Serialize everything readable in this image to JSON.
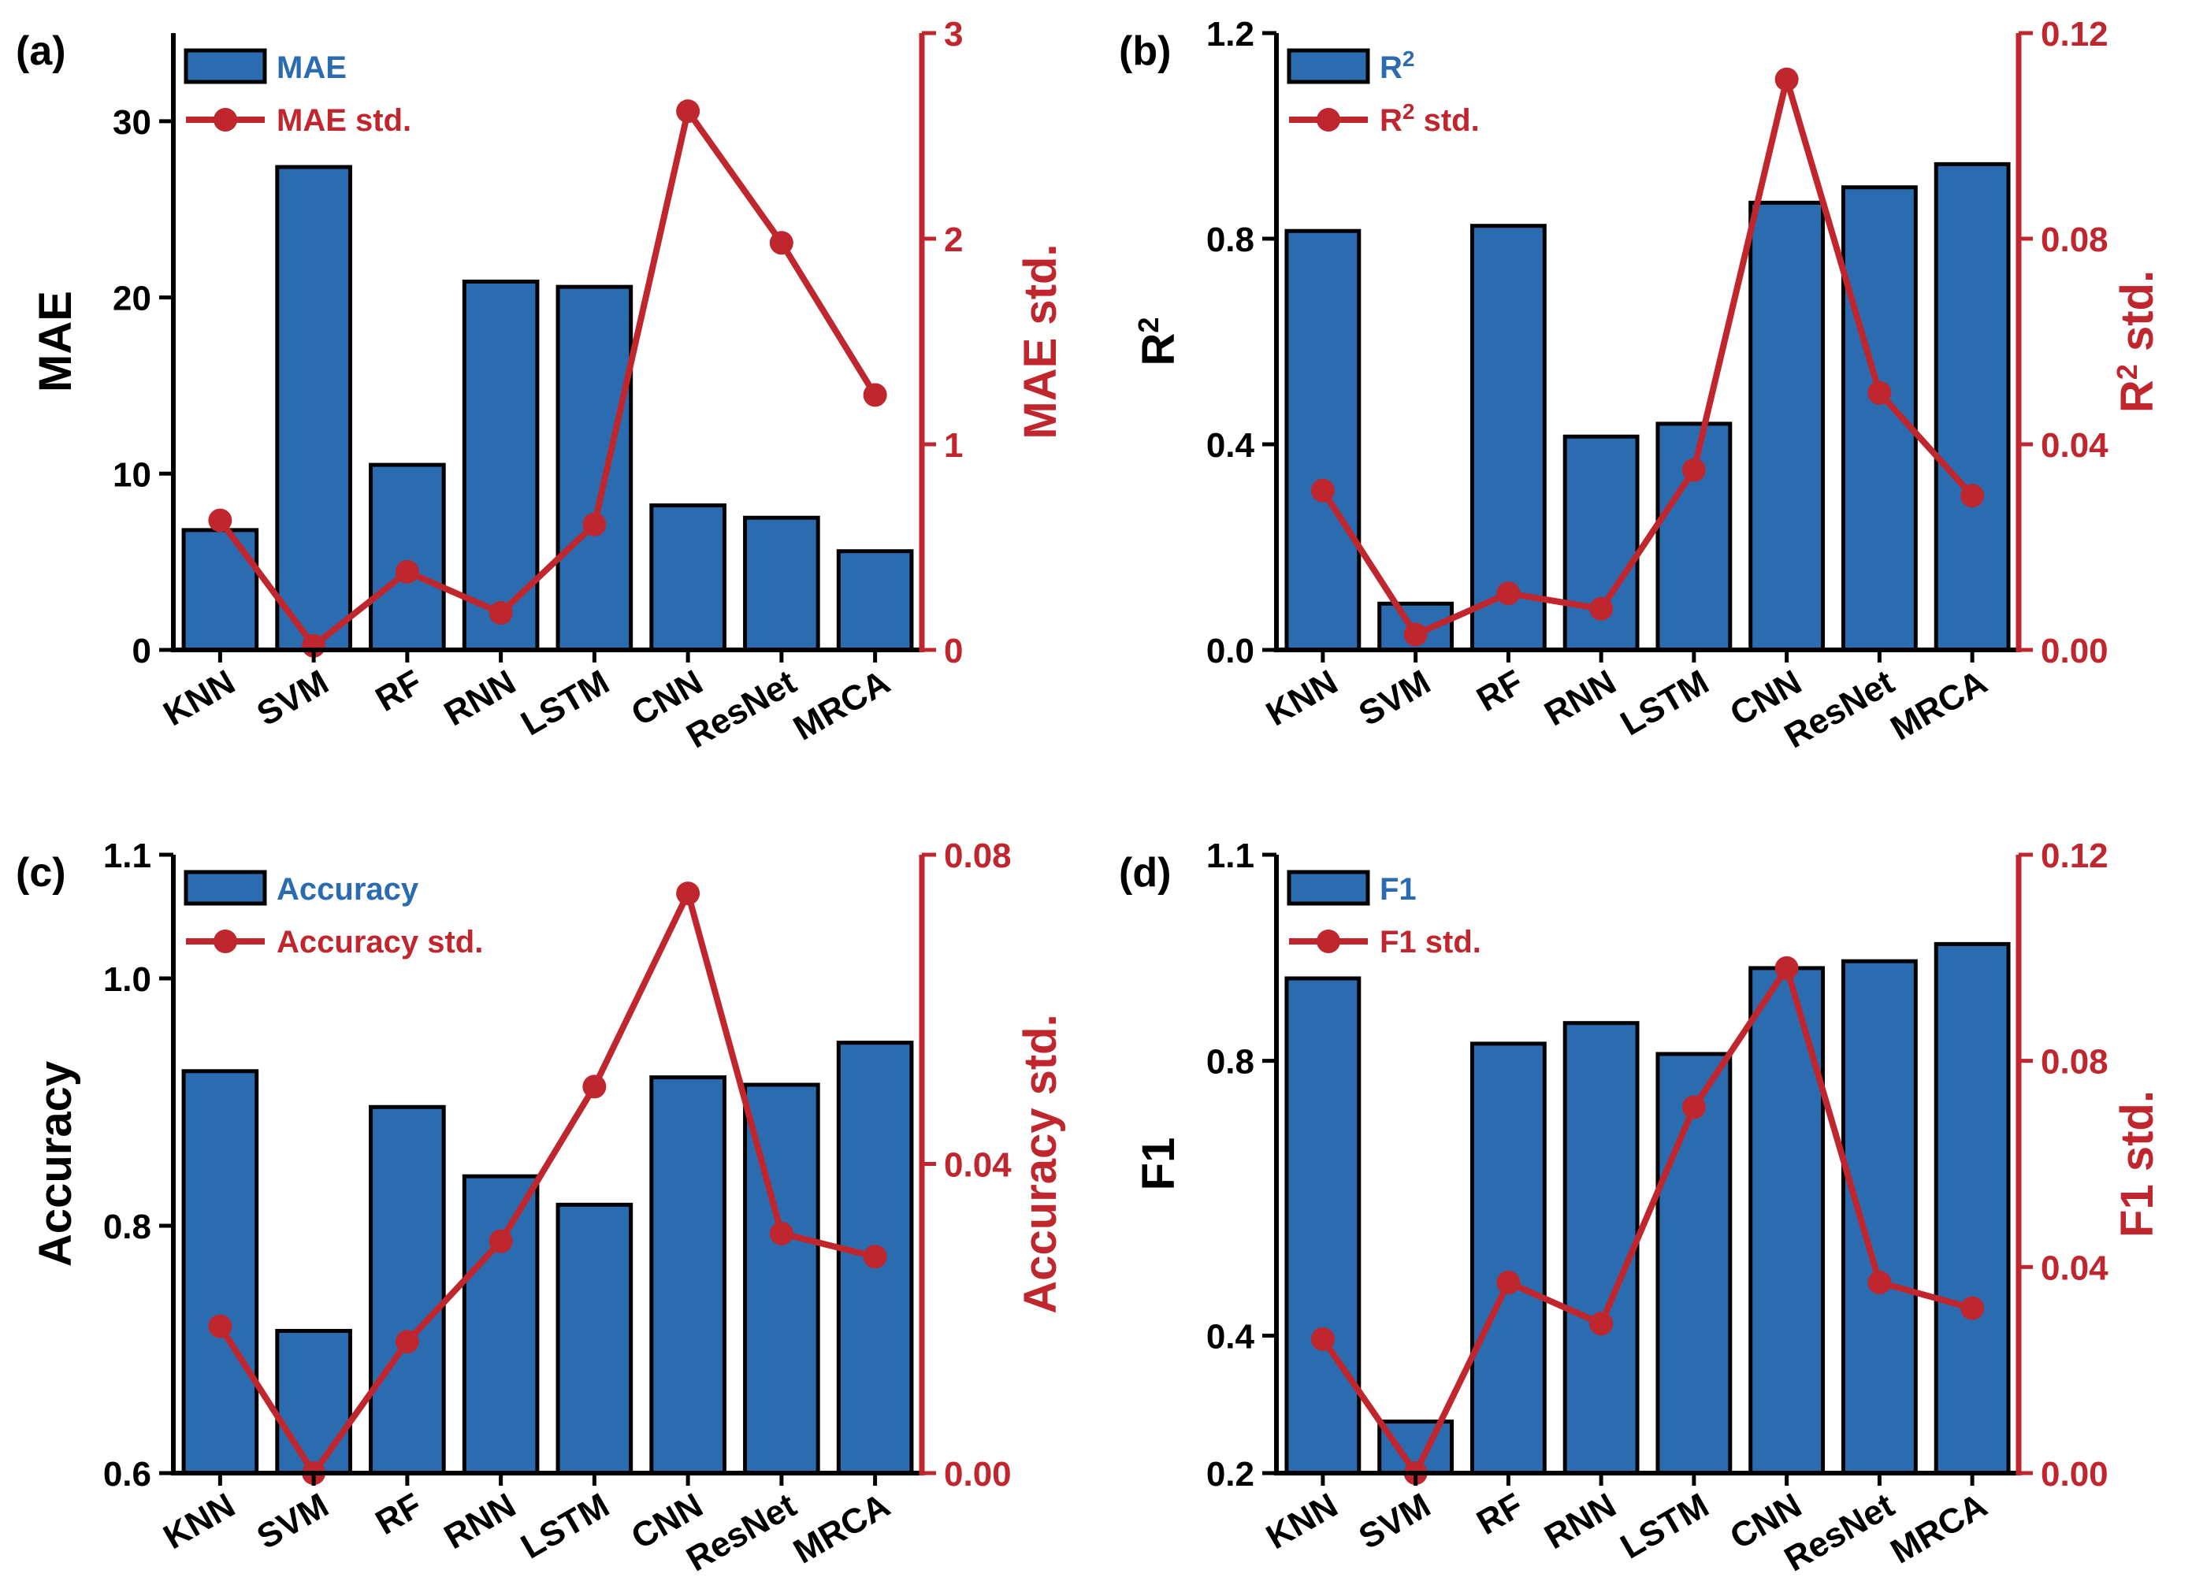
{
  "figure": {
    "bar_color": "#2b6cb0",
    "line_color": "#c0262d",
    "axis_color": "#000000"
  },
  "chart_data": [
    {
      "id": "a",
      "panel_label": "(a)",
      "type": "bar",
      "categories": [
        "KNN",
        "SVM",
        "RF",
        "RNN",
        "LSTM",
        "CNN",
        "ResNet",
        "MRCA"
      ],
      "ylabel": "MAE",
      "ylim": [
        0,
        35
      ],
      "yticks": [
        "0",
        "10",
        "20",
        "30"
      ],
      "ytick_values": [
        0,
        10,
        20,
        30
      ],
      "y2label": "MAE std.",
      "y2lim": [
        0,
        3
      ],
      "y2ticks": [
        "0",
        "1",
        "2",
        "3"
      ],
      "y2tick_values": [
        0,
        1,
        2,
        3
      ],
      "series": [
        {
          "name": "MAE",
          "kind": "bar",
          "axis": "left",
          "values": [
            6.8,
            27.4,
            10.5,
            20.9,
            20.6,
            8.2,
            7.5,
            5.6
          ]
        },
        {
          "name": "MAE std.",
          "kind": "line",
          "axis": "right",
          "values": [
            0.63,
            0.02,
            0.38,
            0.18,
            0.61,
            2.62,
            1.98,
            1.24
          ]
        }
      ]
    },
    {
      "id": "b",
      "panel_label": "(b)",
      "type": "bar",
      "categories": [
        "KNN",
        "SVM",
        "RF",
        "RNN",
        "LSTM",
        "CNN",
        "ResNet",
        "MRCA"
      ],
      "ylabel": "R",
      "ylabel_sup": "2",
      "ylim": [
        0,
        1.2
      ],
      "yticks": [
        "0.0",
        "0.4",
        "0.8",
        "1.2"
      ],
      "ytick_values": [
        0,
        0.4,
        0.8,
        1.2
      ],
      "y2label": "R",
      "y2label_sup": "2",
      "y2label_suffix": " std.",
      "y2lim": [
        0,
        0.12
      ],
      "y2ticks": [
        "0.00",
        "0.04",
        "0.08",
        "0.12"
      ],
      "y2tick_values": [
        0,
        0.04,
        0.08,
        0.12
      ],
      "series": [
        {
          "name": "R",
          "name_sup": "2",
          "name_suffix": "",
          "kind": "bar",
          "axis": "left",
          "values": [
            0.815,
            0.09,
            0.825,
            0.415,
            0.44,
            0.87,
            0.9,
            0.945
          ]
        },
        {
          "name": "R",
          "name_sup": "2",
          "name_suffix": " std.",
          "kind": "line",
          "axis": "right",
          "values": [
            0.031,
            0.003,
            0.011,
            0.008,
            0.035,
            0.111,
            0.05,
            0.03
          ]
        }
      ]
    },
    {
      "id": "c",
      "panel_label": "(c)",
      "type": "bar",
      "categories": [
        "KNN",
        "SVM",
        "RF",
        "RNN",
        "LSTM",
        "CNN",
        "ResNet",
        "MRCA"
      ],
      "ylabel": "Accuracy",
      "ylim": [
        0.6,
        1.1
      ],
      "yticks": [
        "0.6",
        "0.8",
        "1.0",
        "1.1"
      ],
      "ytick_values": [
        0.6,
        0.8,
        1.0,
        1.1
      ],
      "y2label": "Accuracy std.",
      "y2lim": [
        0,
        0.08
      ],
      "y2ticks": [
        "0.00",
        "0.04",
        "0.08"
      ],
      "y2tick_values": [
        0,
        0.04,
        0.08
      ],
      "series": [
        {
          "name": "Accuracy",
          "kind": "bar",
          "axis": "left",
          "values": [
            0.925,
            0.715,
            0.896,
            0.84,
            0.817,
            0.92,
            0.914,
            0.948
          ]
        },
        {
          "name": "Accuracy std.",
          "kind": "line",
          "axis": "right",
          "values": [
            0.019,
            0.0,
            0.017,
            0.03,
            0.05,
            0.075,
            0.031,
            0.028
          ]
        }
      ]
    },
    {
      "id": "d",
      "panel_label": "(d)",
      "type": "bar",
      "categories": [
        "KNN",
        "SVM",
        "RF",
        "RNN",
        "LSTM",
        "CNN",
        "ResNet",
        "MRCA"
      ],
      "ylabel": "F1",
      "ylim": [
        0.2,
        1.1
      ],
      "yticks": [
        "0.2",
        "0.4",
        "0.8",
        "1.1"
      ],
      "ytick_values": [
        0.2,
        0.4,
        0.8,
        1.1
      ],
      "y2label": "F1 std.",
      "y2lim": [
        0,
        0.12
      ],
      "y2ticks": [
        "0.00",
        "0.04",
        "0.08",
        "0.12"
      ],
      "y2tick_values": [
        0,
        0.04,
        0.08,
        0.12
      ],
      "series": [
        {
          "name": "F1",
          "kind": "bar",
          "axis": "left",
          "values": [
            0.92,
            0.275,
            0.825,
            0.855,
            0.81,
            0.935,
            0.945,
            0.97
          ]
        },
        {
          "name": "F1 std.",
          "kind": "line",
          "axis": "right",
          "values": [
            0.026,
            0.0,
            0.037,
            0.029,
            0.071,
            0.098,
            0.037,
            0.032
          ]
        }
      ]
    }
  ]
}
